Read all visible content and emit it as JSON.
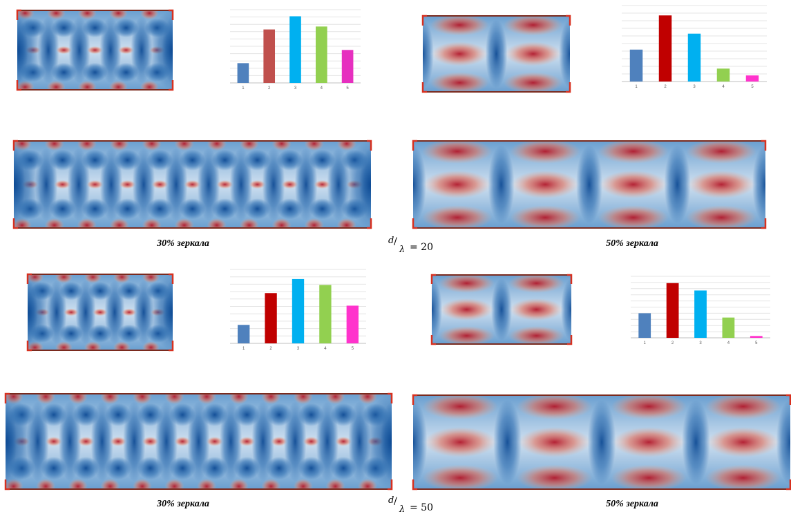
{
  "chart_data": [
    {
      "type": "bar",
      "categories": [
        "1",
        "2",
        "3",
        "4",
        "5"
      ],
      "values": [
        27,
        73,
        91,
        77,
        45
      ],
      "colors": [
        "#4f81bd",
        "#c0504d",
        "#00b0f0",
        "#92d050",
        "#e62fbf"
      ],
      "ylim": [
        0,
        100
      ],
      "yticks": [
        0,
        10,
        20,
        30,
        40,
        50,
        60,
        70,
        80,
        90,
        100
      ],
      "grid": true
    },
    {
      "type": "bar",
      "categories": [
        "1",
        "2",
        "3",
        "4",
        "5"
      ],
      "values": [
        42,
        87,
        63,
        17,
        8
      ],
      "colors": [
        "#4f81bd",
        "#c00000",
        "#00b0f0",
        "#92d050",
        "#ff33cc"
      ],
      "ylim": [
        0,
        100
      ],
      "yticks": [
        0,
        10,
        20,
        30,
        40,
        50,
        60,
        70,
        80,
        90,
        100
      ],
      "grid": true
    },
    {
      "type": "bar",
      "categories": [
        "1",
        "2",
        "3",
        "4",
        "5"
      ],
      "values": [
        25,
        68,
        87,
        79,
        51
      ],
      "colors": [
        "#4f81bd",
        "#c00000",
        "#00b0f0",
        "#92d050",
        "#ff33cc"
      ],
      "ylim": [
        0,
        100
      ],
      "yticks": [
        0,
        10,
        20,
        30,
        40,
        50,
        60,
        70,
        80,
        90,
        100
      ],
      "grid": true
    },
    {
      "type": "bar",
      "categories": [
        "1",
        "2",
        "3",
        "4",
        "5"
      ],
      "values": [
        40,
        89,
        77,
        33,
        3
      ],
      "colors": [
        "#4f81bd",
        "#c00000",
        "#00b0f0",
        "#92d050",
        "#ff33cc"
      ],
      "ylim": [
        0,
        100
      ],
      "yticks": [
        0,
        10,
        20,
        30,
        40,
        50,
        60,
        70,
        80,
        90,
        100
      ],
      "grid": true
    }
  ],
  "captions": [
    "30% зеркала",
    "50% зеркала",
    "30% зеркала",
    "50% зеркала"
  ],
  "ratios": [
    {
      "numerator": "d",
      "denominator": "λ",
      "rest": "= 20"
    },
    {
      "numerator": "d",
      "denominator": "λ",
      "rest": "= 50"
    }
  ]
}
